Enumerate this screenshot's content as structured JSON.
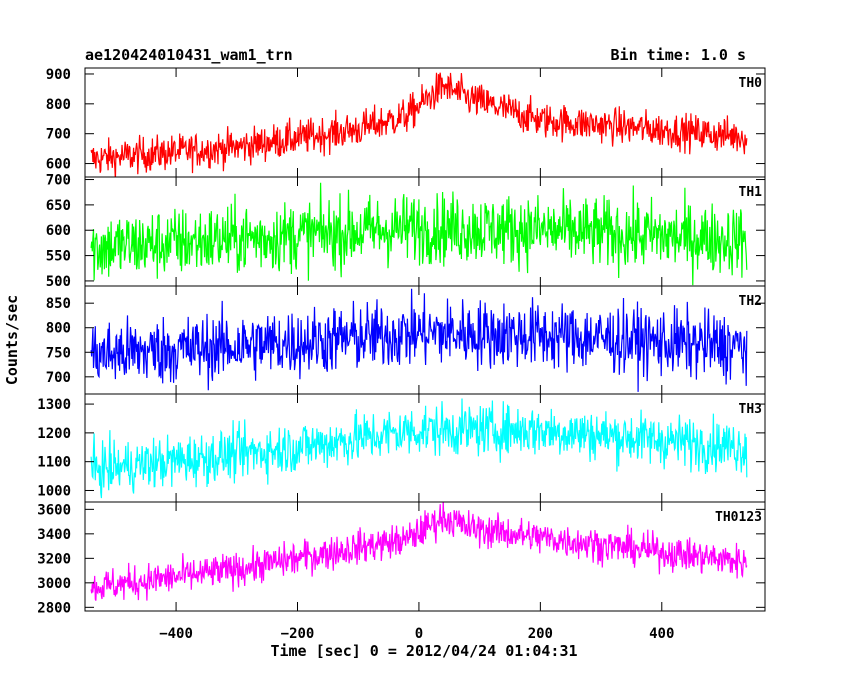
{
  "header": {
    "title": "ae120424010431_wam1_trn",
    "bin_time": "Bin time: 1.0 s"
  },
  "chart_data": {
    "type": "line",
    "title": "ae120424010431_wam1_trn",
    "xlabel": "Time [sec] 0 = 2012/04/24 01:04:31",
    "ylabel": "Counts/sec",
    "xlim": [
      -550,
      570
    ],
    "x_ticks": [
      -400,
      -200,
      0,
      200,
      400
    ],
    "x_range": [
      -540,
      540
    ],
    "grid": false,
    "panels": [
      {
        "label": "TH0",
        "color": "#ff0000",
        "ylim": [
          555,
          920
        ],
        "y_ticks": [
          600,
          700,
          800,
          900
        ],
        "trend": [
          [
            -540,
            615
          ],
          [
            -300,
            655
          ],
          [
            -100,
            715
          ],
          [
            -20,
            760
          ],
          [
            40,
            860
          ],
          [
            80,
            820
          ],
          [
            200,
            745
          ],
          [
            540,
            690
          ]
        ],
        "noise": 30
      },
      {
        "label": "TH1",
        "color": "#00ff00",
        "ylim": [
          490,
          705
        ],
        "y_ticks": [
          500,
          550,
          600,
          650,
          700
        ],
        "trend": [
          [
            -540,
            565
          ],
          [
            -200,
            590
          ],
          [
            0,
            605
          ],
          [
            200,
            600
          ],
          [
            540,
            580
          ]
        ],
        "noise": 35
      },
      {
        "label": "TH2",
        "color": "#0000ff",
        "ylim": [
          665,
          885
        ],
        "y_ticks": [
          700,
          750,
          800,
          850
        ],
        "trend": [
          [
            -540,
            745
          ],
          [
            -200,
            770
          ],
          [
            0,
            790
          ],
          [
            200,
            785
          ],
          [
            540,
            760
          ]
        ],
        "noise": 35
      },
      {
        "label": "TH3",
        "color": "#00ffff",
        "ylim": [
          960,
          1335
        ],
        "y_ticks": [
          1000,
          1100,
          1200,
          1300
        ],
        "trend": [
          [
            -540,
            1070
          ],
          [
            -200,
            1150
          ],
          [
            0,
            1210
          ],
          [
            200,
            1210
          ],
          [
            540,
            1150
          ]
        ],
        "noise": 45
      },
      {
        "label": "TH0123",
        "color": "#ff00ff",
        "ylim": [
          2770,
          3660
        ],
        "y_ticks": [
          2800,
          3000,
          3200,
          3400,
          3600
        ],
        "trend": [
          [
            -540,
            2960
          ],
          [
            -300,
            3110
          ],
          [
            -100,
            3290
          ],
          [
            -20,
            3350
          ],
          [
            40,
            3540
          ],
          [
            80,
            3450
          ],
          [
            200,
            3370
          ],
          [
            540,
            3170
          ]
        ],
        "noise": 70
      }
    ]
  }
}
